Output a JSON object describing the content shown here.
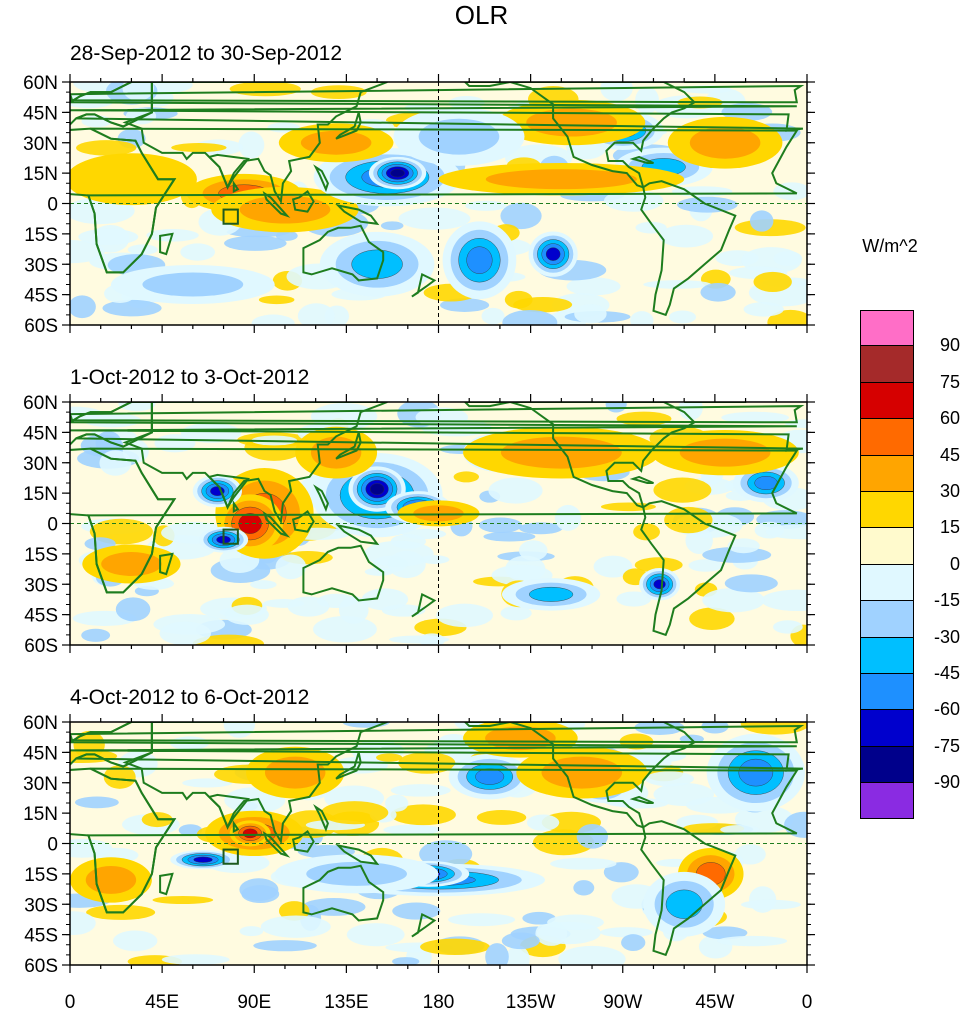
{
  "figure": {
    "title": "OLR",
    "units": "W/m^2",
    "colors": {
      "coast": "#1e7d1e",
      "axis": "#000000",
      "equator": "#1e7d1e",
      "dateline": "#000000"
    }
  },
  "panels": [
    {
      "id": "p1",
      "title": "28-Sep-2012 to 30-Sep-2012",
      "features": [
        {
          "lon": 85,
          "lat": 5,
          "rx": 14,
          "ry": 6,
          "level": 45
        },
        {
          "lon": 100,
          "lat": 0,
          "rx": 10,
          "ry": 5,
          "level": 60
        },
        {
          "lon": 105,
          "lat": -3,
          "rx": 18,
          "ry": 7,
          "level": 30
        },
        {
          "lon": 155,
          "lat": 13,
          "rx": 18,
          "ry": 9,
          "level": -60
        },
        {
          "lon": 160,
          "lat": 15,
          "rx": 7,
          "ry": 5,
          "level": -90
        },
        {
          "lon": 200,
          "lat": -28,
          "rx": 9,
          "ry": 12,
          "level": -60
        },
        {
          "lon": 236,
          "lat": -25,
          "rx": 6,
          "ry": 7,
          "level": -75
        },
        {
          "lon": 150,
          "lat": -30,
          "rx": 14,
          "ry": 10,
          "level": -45
        },
        {
          "lon": 270,
          "lat": 36,
          "rx": 10,
          "ry": 6,
          "level": -60
        },
        {
          "lon": 290,
          "lat": 18,
          "rx": 12,
          "ry": 6,
          "level": -45
        },
        {
          "lon": 245,
          "lat": 40,
          "rx": 18,
          "ry": 7,
          "level": 30
        },
        {
          "lon": 190,
          "lat": 33,
          "rx": 16,
          "ry": 9,
          "level": -30
        },
        {
          "lon": 130,
          "lat": 30,
          "rx": 14,
          "ry": 6,
          "level": 30
        },
        {
          "lon": 30,
          "lat": 12,
          "rx": 16,
          "ry": 8,
          "level": 15
        },
        {
          "lon": 320,
          "lat": 30,
          "rx": 14,
          "ry": 8,
          "level": 30
        },
        {
          "lon": 60,
          "lat": -40,
          "rx": 20,
          "ry": 6,
          "level": -30
        },
        {
          "lon": 240,
          "lat": 12,
          "rx": 30,
          "ry": 5,
          "level": 30
        }
      ]
    },
    {
      "id": "p2",
      "title": "1-Oct-2012 to 3-Oct-2012",
      "features": [
        {
          "lon": 95,
          "lat": 5,
          "rx": 12,
          "ry": 14,
          "level": 45
        },
        {
          "lon": 88,
          "lat": 0,
          "rx": 8,
          "ry": 9,
          "level": 60
        },
        {
          "lon": 72,
          "lat": 16,
          "rx": 6,
          "ry": 5,
          "level": -75
        },
        {
          "lon": 75,
          "lat": -8,
          "rx": 6,
          "ry": 4,
          "level": -75
        },
        {
          "lon": 150,
          "lat": 14,
          "rx": 16,
          "ry": 13,
          "level": -60
        },
        {
          "lon": 150,
          "lat": 17,
          "rx": 7,
          "ry": 7,
          "level": -90
        },
        {
          "lon": 170,
          "lat": 8,
          "rx": 8,
          "ry": 5,
          "level": -75
        },
        {
          "lon": 288,
          "lat": -30,
          "rx": 5,
          "ry": 5,
          "level": -75
        },
        {
          "lon": 210,
          "lat": 35,
          "rx": 9,
          "ry": 6,
          "level": -60
        },
        {
          "lon": 340,
          "lat": 20,
          "rx": 8,
          "ry": 6,
          "level": -60
        },
        {
          "lon": 240,
          "lat": 35,
          "rx": 24,
          "ry": 8,
          "level": 30
        },
        {
          "lon": 180,
          "lat": 5,
          "rx": 10,
          "ry": 4,
          "level": 30
        },
        {
          "lon": 235,
          "lat": -35,
          "rx": 12,
          "ry": 5,
          "level": -45
        },
        {
          "lon": 130,
          "lat": 35,
          "rx": 10,
          "ry": 8,
          "level": 30
        },
        {
          "lon": 30,
          "lat": -20,
          "rx": 12,
          "ry": 6,
          "level": 30
        },
        {
          "lon": 320,
          "lat": 35,
          "rx": 18,
          "ry": 7,
          "level": 30
        }
      ]
    },
    {
      "id": "p3",
      "title": "4-Oct-2012 to 6-Oct-2012",
      "features": [
        {
          "lon": 90,
          "lat": 5,
          "rx": 12,
          "ry": 7,
          "level": 45
        },
        {
          "lon": 88,
          "lat": 5,
          "rx": 5,
          "ry": 4,
          "level": 60
        },
        {
          "lon": 65,
          "lat": -8,
          "rx": 8,
          "ry": 3,
          "level": -75
        },
        {
          "lon": 180,
          "lat": -18,
          "rx": 26,
          "ry": 5,
          "level": -60
        },
        {
          "lon": 175,
          "lat": -15,
          "rx": 10,
          "ry": 4,
          "level": -75
        },
        {
          "lon": 205,
          "lat": 33,
          "rx": 10,
          "ry": 7,
          "level": -60
        },
        {
          "lon": 260,
          "lat": 28,
          "rx": 7,
          "ry": 5,
          "level": -60
        },
        {
          "lon": 335,
          "lat": 35,
          "rx": 12,
          "ry": 12,
          "level": -60
        },
        {
          "lon": 250,
          "lat": 35,
          "rx": 16,
          "ry": 8,
          "level": 30
        },
        {
          "lon": 220,
          "lat": 52,
          "rx": 14,
          "ry": 6,
          "level": 30
        },
        {
          "lon": 313,
          "lat": -15,
          "rx": 8,
          "ry": 8,
          "level": 45
        },
        {
          "lon": 20,
          "lat": -18,
          "rx": 10,
          "ry": 7,
          "level": 30
        },
        {
          "lon": 110,
          "lat": 35,
          "rx": 12,
          "ry": 8,
          "level": 30
        },
        {
          "lon": 140,
          "lat": -15,
          "rx": 20,
          "ry": 6,
          "level": -30
        },
        {
          "lon": 300,
          "lat": -30,
          "rx": 10,
          "ry": 10,
          "level": -45
        }
      ]
    }
  ],
  "box_marker": {
    "lon_min": 75,
    "lon_max": 82,
    "lat_min": -10,
    "lat_max": -3
  },
  "lat_labels": [
    "60N",
    "45N",
    "30N",
    "15N",
    "0",
    "15S",
    "30S",
    "45S",
    "60S"
  ],
  "lon_labels": [
    "0",
    "45E",
    "90E",
    "135E",
    "180",
    "135W",
    "90W",
    "45W",
    "0"
  ],
  "colorbar": {
    "labels": [
      "90",
      "75",
      "60",
      "45",
      "30",
      "15",
      "0",
      "-15",
      "-30",
      "-45",
      "-60",
      "-75",
      "-90"
    ],
    "colors": [
      "#ff6ec7",
      "#a52a2a",
      "#d60000",
      "#ff6a00",
      "#ffa500",
      "#ffd700",
      "#fffacd",
      "#e0f8ff",
      "#a0d2ff",
      "#00bfff",
      "#1e90ff",
      "#0000cd",
      "#00008b",
      "#8a2be2"
    ],
    "level_index": {
      "90": 0,
      "75": 1,
      "60": 2,
      "45": 3,
      "30": 4,
      "15": 5,
      "0": 6,
      "-15": 7,
      "-30": 8,
      "-45": 9,
      "-60": 10,
      "-75": 11,
      "-90": 12,
      "-105": 13
    }
  }
}
